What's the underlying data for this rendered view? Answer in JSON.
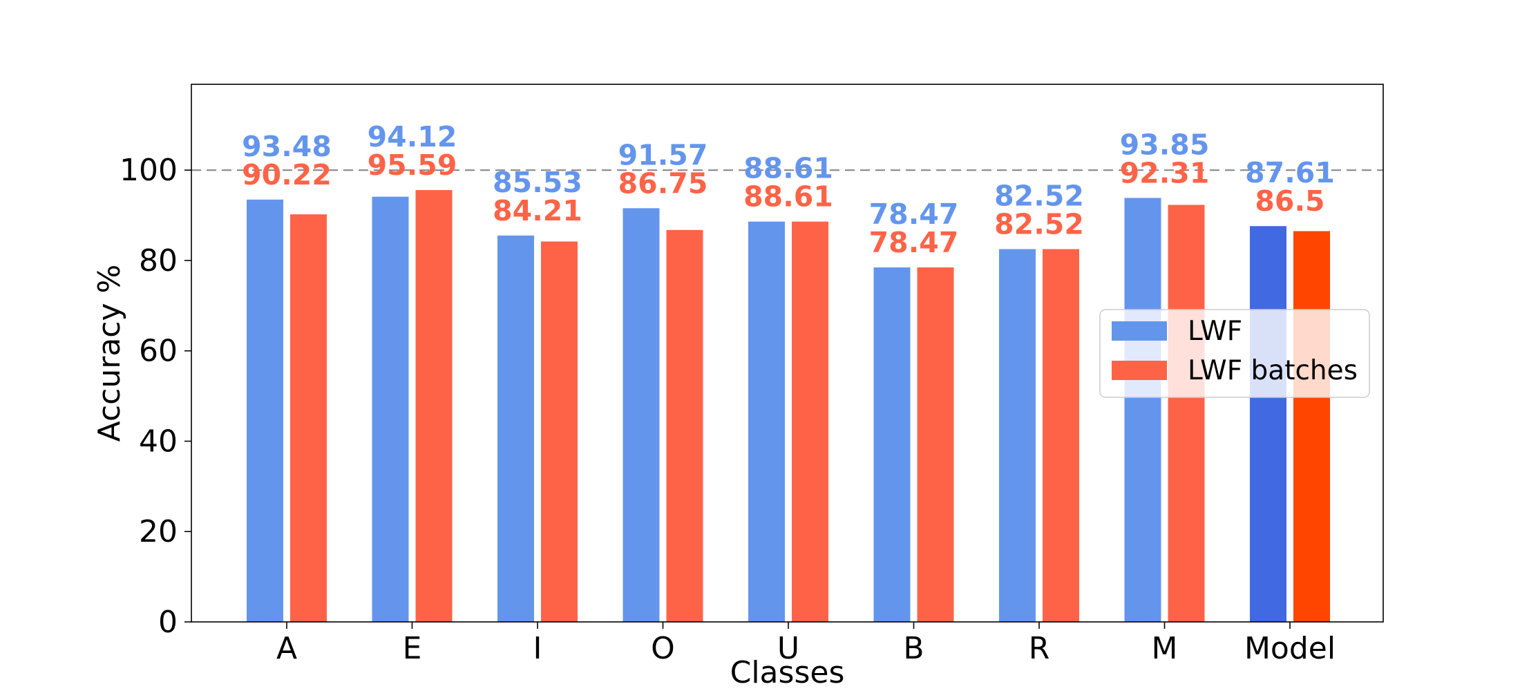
{
  "chart_data": {
    "type": "bar",
    "title": "",
    "xlabel": "Classes",
    "ylabel": "Accuracy %",
    "categories": [
      "A",
      "E",
      "I",
      "O",
      "U",
      "B",
      "R",
      "M",
      "Model"
    ],
    "ylim": [
      0,
      119
    ],
    "yticks": [
      0,
      20,
      40,
      60,
      80,
      100
    ],
    "ytick_labels": [
      "0",
      "20",
      "40",
      "60",
      "80",
      "100"
    ],
    "reference_line": {
      "y": 100,
      "style": "dashed",
      "color": "#808080"
    },
    "series": [
      {
        "name": "LWF",
        "color": "#6495ED",
        "highlight_color": "#4169E1",
        "values": [
          93.48,
          94.12,
          85.53,
          91.57,
          88.61,
          78.47,
          82.52,
          93.85,
          87.61
        ],
        "labels": [
          "93.48",
          "94.12",
          "85.53",
          "91.57",
          "88.61",
          "78.47",
          "82.52",
          "93.85",
          "87.61"
        ]
      },
      {
        "name": "LWF batches",
        "color": "#FF6347",
        "highlight_color": "#FF4500",
        "values": [
          90.22,
          95.59,
          84.21,
          86.75,
          88.61,
          78.47,
          82.52,
          92.31,
          86.5
        ],
        "labels": [
          "90.22",
          "95.59",
          "84.21",
          "86.75",
          "88.61",
          "78.47",
          "82.52",
          "92.31",
          "86.5"
        ]
      }
    ],
    "highlight_category": "Model",
    "legend": {
      "position": "center-right",
      "entries": [
        "LWF",
        "LWF batches"
      ]
    },
    "grid": false
  }
}
